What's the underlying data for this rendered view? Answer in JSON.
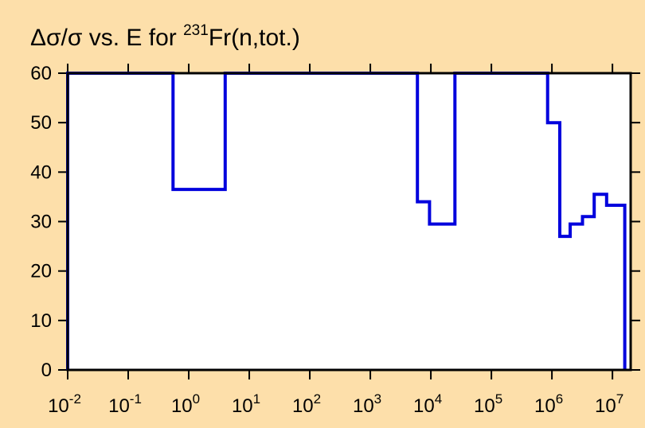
{
  "chart_data": {
    "type": "line",
    "title": {
      "prefix": "Δσ/σ vs. E for ",
      "superscript": "231",
      "suffix": "Fr(n,tot.)"
    },
    "xlabel": "",
    "ylabel": "",
    "x_scale": "log",
    "xlim": [
      0.01,
      20000000
    ],
    "ylim": [
      0,
      60
    ],
    "x_ticks": [
      {
        "base": "10",
        "exp": "-2"
      },
      {
        "base": "10",
        "exp": "-1"
      },
      {
        "base": "10",
        "exp": "0"
      },
      {
        "base": "10",
        "exp": "1"
      },
      {
        "base": "10",
        "exp": "2"
      },
      {
        "base": "10",
        "exp": "3"
      },
      {
        "base": "10",
        "exp": "4"
      },
      {
        "base": "10",
        "exp": "5"
      },
      {
        "base": "10",
        "exp": "6"
      },
      {
        "base": "10",
        "exp": "7"
      }
    ],
    "y_ticks": [
      "0",
      "10",
      "20",
      "30",
      "40",
      "50",
      "60"
    ],
    "grid": false,
    "series": [
      {
        "style": "step",
        "color": "#0000dd",
        "points": [
          [
            0.01,
            0
          ],
          [
            0.01,
            60
          ],
          [
            0.55,
            60
          ],
          [
            0.55,
            36.5
          ],
          [
            4.0,
            36.5
          ],
          [
            4.0,
            60
          ],
          [
            6000,
            60
          ],
          [
            6000,
            34
          ],
          [
            9500,
            34
          ],
          [
            9500,
            29.5
          ],
          [
            25000,
            29.5
          ],
          [
            25000,
            60
          ],
          [
            850000,
            60
          ],
          [
            850000,
            50
          ],
          [
            1350000,
            50
          ],
          [
            1350000,
            27
          ],
          [
            2000000,
            27
          ],
          [
            2000000,
            29.5
          ],
          [
            3200000,
            29.5
          ],
          [
            3200000,
            31
          ],
          [
            5000000,
            31
          ],
          [
            5000000,
            35.5
          ],
          [
            8000000,
            35.5
          ],
          [
            8000000,
            33.3
          ],
          [
            16000000,
            33.3
          ],
          [
            16000000,
            0
          ]
        ]
      }
    ]
  },
  "colors": {
    "background": "#fddfaa",
    "plot_area": "#ffffff",
    "series": "#0000dd",
    "axis": "#000000"
  }
}
